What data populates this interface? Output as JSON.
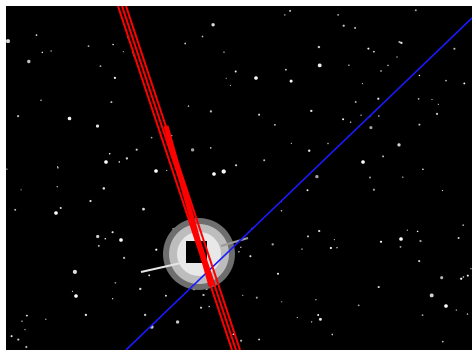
{
  "image": {
    "kind": "astronomical-field",
    "background_color": "#000000",
    "frame_color": "#ffffff"
  },
  "overlays": {
    "red_track": {
      "color": "#ff0000",
      "description_icon": "red-satellite-trail"
    },
    "blue_track": {
      "color": "#1a1aff",
      "description_icon": "blue-guide-line"
    }
  },
  "target": {
    "box_color": "#000000",
    "halo_color": "#d8d8d8",
    "icon": "masked-bright-star"
  }
}
